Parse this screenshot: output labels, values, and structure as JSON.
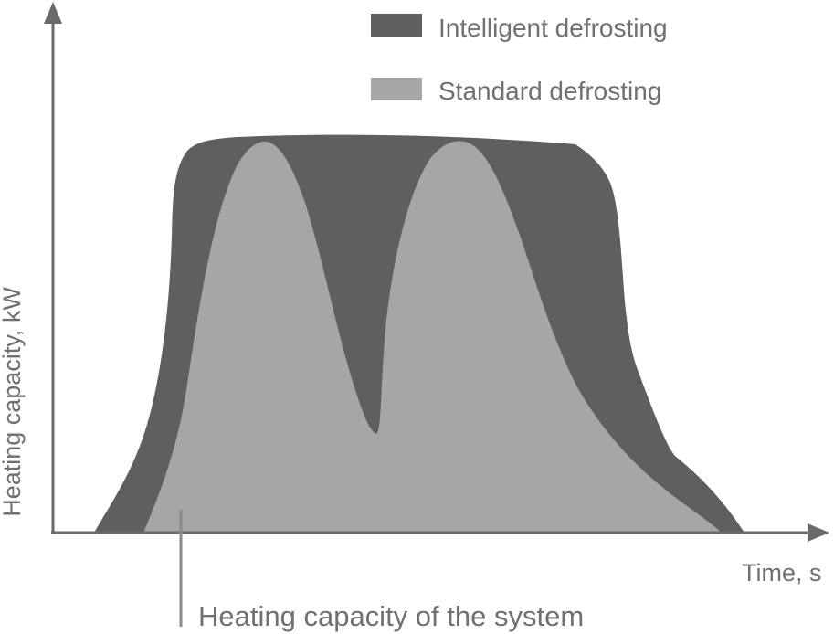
{
  "chart_data": {
    "type": "area",
    "title": "",
    "xlabel": "Time, s",
    "ylabel": "Heating capacity, kW",
    "legend": {
      "placement": "top-right",
      "entries": [
        {
          "name": "Intelligent defrosting",
          "color": "#5f5f5f"
        },
        {
          "name": "Standard defrosting",
          "color": "#a6a6a6"
        }
      ]
    },
    "annotation": "Heating capacity of the system",
    "grid": false
  },
  "colors": {
    "axis": "#6a6a6a",
    "text": "#707070"
  }
}
